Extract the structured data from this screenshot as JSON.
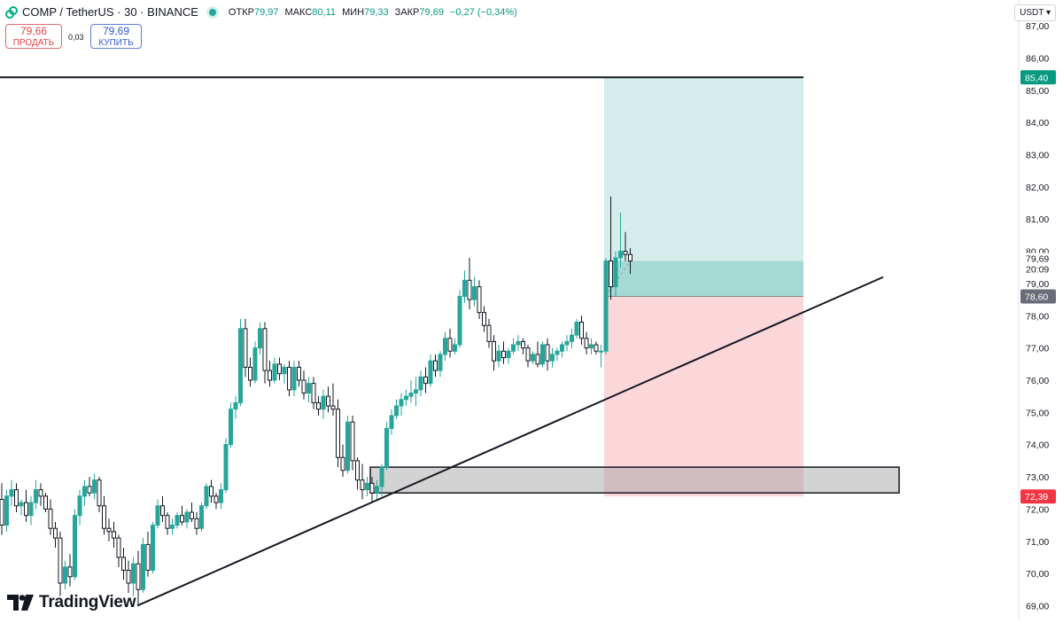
{
  "header": {
    "symbol": "COMP / TetherUS · 30 · BINANCE",
    "ohlc": [
      {
        "key": "ОТКР",
        "value": "79,97"
      },
      {
        "key": "МАКС",
        "value": "80,11"
      },
      {
        "key": "МИН",
        "value": "79,33"
      },
      {
        "key": "ЗАКР",
        "value": "79,69"
      }
    ],
    "change": "−0,27 (−0,34%)",
    "status_color": "#26a69a"
  },
  "trade": {
    "sell_price": "79,66",
    "sell_label": "ПРОДАТЬ",
    "spread": "0,03",
    "buy_price": "79,69",
    "buy_label": "КУПИТЬ"
  },
  "currency_button": "USDT ▾",
  "logo_text": "TradingView",
  "chart_data": {
    "type": "candlestick",
    "y_axis": {
      "side": "right",
      "range": [
        68.6,
        87.8
      ],
      "ticks": [
        "69,00",
        "70,00",
        "71,00",
        "72,00",
        "73,00",
        "74,00",
        "75,00",
        "76,00",
        "77,00",
        "78,00",
        "79,00",
        "80,00",
        "81,00",
        "82,00",
        "83,00",
        "84,00",
        "85,00",
        "86,00",
        "87,00"
      ]
    },
    "grid": false,
    "colors": {
      "up": "#26a69a",
      "down": "#131722",
      "up_fill": "#26a69a",
      "down_fill": "#ffffff"
    },
    "candles": [
      [
        72.3,
        72.8,
        71.2,
        71.5
      ],
      [
        71.5,
        72.6,
        71.3,
        72.4
      ],
      [
        72.4,
        72.9,
        72.1,
        72.6
      ],
      [
        72.6,
        72.8,
        71.9,
        72.1
      ],
      [
        72.1,
        72.3,
        71.8,
        72.2
      ],
      [
        72.2,
        72.6,
        71.6,
        71.8
      ],
      [
        71.8,
        72.4,
        71.5,
        72.2
      ],
      [
        72.2,
        72.9,
        72.0,
        72.6
      ],
      [
        72.6,
        72.8,
        72.1,
        72.4
      ],
      [
        72.4,
        72.5,
        71.9,
        72.0
      ],
      [
        72.0,
        72.3,
        71.2,
        71.4
      ],
      [
        71.4,
        71.6,
        70.8,
        71.1
      ],
      [
        71.1,
        71.3,
        69.3,
        69.7
      ],
      [
        69.7,
        70.4,
        69.5,
        70.2
      ],
      [
        70.2,
        70.6,
        69.6,
        69.9
      ],
      [
        69.9,
        72.0,
        69.8,
        71.8
      ],
      [
        71.8,
        72.6,
        71.5,
        72.4
      ],
      [
        72.4,
        72.9,
        72.1,
        72.7
      ],
      [
        72.7,
        73.0,
        72.4,
        72.5
      ],
      [
        72.5,
        73.1,
        72.3,
        72.9
      ],
      [
        72.9,
        73.0,
        71.9,
        72.1
      ],
      [
        72.1,
        72.4,
        71.2,
        71.4
      ],
      [
        71.4,
        71.7,
        71.0,
        71.3
      ],
      [
        71.3,
        71.6,
        70.8,
        71.1
      ],
      [
        71.1,
        71.2,
        70.2,
        70.5
      ],
      [
        70.5,
        70.8,
        69.8,
        70.1
      ],
      [
        70.1,
        70.4,
        69.4,
        69.7
      ],
      [
        69.7,
        70.5,
        69.3,
        70.3
      ],
      [
        70.3,
        70.7,
        69.0,
        69.5
      ],
      [
        69.5,
        71.1,
        69.4,
        70.9
      ],
      [
        70.9,
        71.3,
        69.9,
        70.1
      ],
      [
        70.1,
        71.6,
        70.0,
        71.5
      ],
      [
        71.5,
        72.3,
        71.4,
        72.1
      ],
      [
        72.1,
        72.4,
        71.6,
        71.8
      ],
      [
        71.8,
        71.9,
        71.2,
        71.4
      ],
      [
        71.4,
        71.7,
        71.2,
        71.5
      ],
      [
        71.5,
        71.9,
        71.4,
        71.8
      ],
      [
        71.8,
        72.1,
        71.5,
        71.6
      ],
      [
        71.6,
        72.0,
        71.4,
        71.9
      ],
      [
        71.9,
        72.2,
        71.6,
        71.7
      ],
      [
        71.7,
        71.9,
        71.2,
        71.4
      ],
      [
        71.4,
        72.2,
        71.3,
        72.1
      ],
      [
        72.1,
        72.8,
        72.0,
        72.7
      ],
      [
        72.7,
        72.9,
        72.2,
        72.4
      ],
      [
        72.4,
        72.5,
        72.0,
        72.2
      ],
      [
        72.2,
        72.8,
        72.0,
        72.6
      ],
      [
        72.6,
        74.2,
        72.5,
        74.0
      ],
      [
        74.0,
        75.3,
        73.9,
        75.1
      ],
      [
        75.1,
        75.5,
        74.8,
        75.3
      ],
      [
        75.3,
        77.9,
        75.2,
        77.6
      ],
      [
        77.6,
        77.9,
        76.1,
        76.4
      ],
      [
        76.4,
        76.7,
        75.8,
        76.0
      ],
      [
        76.0,
        77.2,
        75.9,
        77.0
      ],
      [
        77.0,
        77.8,
        76.8,
        77.6
      ],
      [
        77.6,
        77.8,
        75.9,
        76.3
      ],
      [
        76.3,
        76.6,
        75.8,
        76.0
      ],
      [
        76.0,
        76.7,
        75.9,
        76.5
      ],
      [
        76.5,
        76.7,
        76.0,
        76.2
      ],
      [
        76.2,
        76.5,
        75.9,
        76.4
      ],
      [
        76.4,
        76.6,
        75.5,
        75.7
      ],
      [
        75.7,
        76.6,
        75.5,
        76.4
      ],
      [
        76.4,
        76.6,
        75.8,
        76.0
      ],
      [
        76.0,
        76.3,
        75.4,
        75.6
      ],
      [
        75.6,
        76.1,
        75.3,
        75.9
      ],
      [
        75.9,
        76.1,
        75.1,
        75.3
      ],
      [
        75.3,
        75.5,
        74.9,
        75.1
      ],
      [
        75.1,
        75.7,
        74.8,
        75.5
      ],
      [
        75.5,
        75.8,
        75.0,
        75.2
      ],
      [
        75.2,
        75.9,
        74.9,
        75.1
      ],
      [
        75.1,
        75.4,
        73.3,
        73.6
      ],
      [
        73.6,
        74.0,
        73.0,
        73.2
      ],
      [
        73.2,
        74.9,
        73.1,
        74.7
      ],
      [
        74.7,
        74.9,
        73.2,
        73.5
      ],
      [
        73.5,
        73.6,
        72.6,
        72.9
      ],
      [
        72.9,
        73.4,
        72.3,
        72.6
      ],
      [
        72.6,
        73.0,
        72.4,
        72.8
      ],
      [
        72.8,
        73.0,
        72.2,
        72.5
      ],
      [
        72.5,
        72.9,
        72.3,
        72.7
      ],
      [
        72.7,
        73.4,
        72.4,
        73.3
      ],
      [
        73.3,
        74.7,
        73.2,
        74.5
      ],
      [
        74.5,
        75.1,
        74.3,
        74.9
      ],
      [
        74.9,
        75.4,
        74.8,
        75.2
      ],
      [
        75.2,
        75.6,
        74.9,
        75.4
      ],
      [
        75.4,
        75.7,
        75.2,
        75.5
      ],
      [
        75.5,
        76.0,
        75.3,
        75.6
      ],
      [
        75.6,
        76.1,
        75.2,
        75.7
      ],
      [
        75.7,
        76.3,
        75.5,
        76.1
      ],
      [
        76.1,
        76.4,
        75.6,
        75.9
      ],
      [
        75.9,
        76.8,
        75.8,
        76.6
      ],
      [
        76.6,
        76.8,
        76.1,
        76.3
      ],
      [
        76.3,
        76.9,
        76.1,
        76.8
      ],
      [
        76.8,
        77.5,
        76.6,
        77.3
      ],
      [
        77.3,
        77.6,
        76.7,
        76.9
      ],
      [
        76.9,
        77.3,
        76.8,
        77.1
      ],
      [
        77.1,
        78.8,
        77.0,
        78.6
      ],
      [
        78.6,
        79.4,
        78.4,
        79.1
      ],
      [
        79.1,
        79.8,
        78.2,
        78.5
      ],
      [
        78.5,
        79.2,
        78.3,
        78.9
      ],
      [
        78.9,
        79.1,
        77.9,
        78.1
      ],
      [
        78.1,
        78.3,
        77.5,
        77.7
      ],
      [
        77.7,
        77.9,
        77.0,
        77.2
      ],
      [
        77.2,
        77.4,
        76.3,
        76.6
      ],
      [
        76.6,
        77.1,
        76.4,
        76.9
      ],
      [
        76.9,
        77.2,
        76.5,
        76.7
      ],
      [
        76.7,
        77.0,
        76.5,
        76.9
      ],
      [
        76.9,
        77.3,
        76.8,
        77.1
      ],
      [
        77.1,
        77.4,
        76.9,
        77.2
      ],
      [
        77.2,
        77.3,
        76.8,
        77.0
      ],
      [
        77.0,
        77.1,
        76.4,
        76.6
      ],
      [
        76.6,
        76.9,
        76.5,
        76.8
      ],
      [
        76.8,
        77.2,
        76.4,
        76.5
      ],
      [
        76.5,
        77.2,
        76.4,
        77.1
      ],
      [
        77.1,
        77.3,
        76.3,
        76.6
      ],
      [
        76.6,
        77.0,
        76.4,
        76.8
      ],
      [
        76.8,
        77.0,
        76.6,
        76.9
      ],
      [
        76.9,
        77.2,
        76.7,
        77.1
      ],
      [
        77.1,
        77.4,
        76.9,
        77.2
      ],
      [
        77.2,
        77.6,
        77.0,
        77.4
      ],
      [
        77.4,
        77.9,
        77.3,
        77.8
      ],
      [
        77.8,
        78.0,
        77.1,
        77.3
      ],
      [
        77.3,
        77.5,
        76.8,
        77.0
      ],
      [
        77.0,
        77.3,
        76.8,
        77.1
      ],
      [
        77.1,
        77.2,
        76.8,
        76.9
      ],
      [
        76.9,
        77.1,
        76.4,
        76.9
      ],
      [
        76.9,
        79.8,
        76.8,
        79.7
      ],
      [
        79.7,
        81.7,
        78.5,
        78.9
      ],
      [
        78.9,
        80.0,
        78.6,
        79.8
      ],
      [
        79.8,
        81.2,
        79.5,
        80.0
      ],
      [
        80.0,
        80.6,
        79.7,
        79.9
      ],
      [
        79.9,
        80.1,
        79.3,
        79.7
      ]
    ],
    "annotations": {
      "horizontal_line_price": 85.4,
      "trend_line": {
        "from": {
          "bar": 0,
          "price": 69.0
        },
        "to": {
          "bar": 1,
          "price": 79.2
        }
      },
      "support_zone": {
        "top": 73.3,
        "bottom": 72.5
      },
      "long_position": {
        "entry": 78.6,
        "target": 85.4,
        "stop": 72.39
      },
      "price_labels": [
        {
          "text": "85,40",
          "color": "#089981"
        },
        {
          "text": "78,60",
          "color": "#6a6d78"
        },
        {
          "text": "72,39",
          "color": "#f23645"
        },
        {
          "text": "79,69",
          "color": "#131722"
        },
        {
          "text": "20:09",
          "color": "#131722"
        }
      ]
    }
  }
}
